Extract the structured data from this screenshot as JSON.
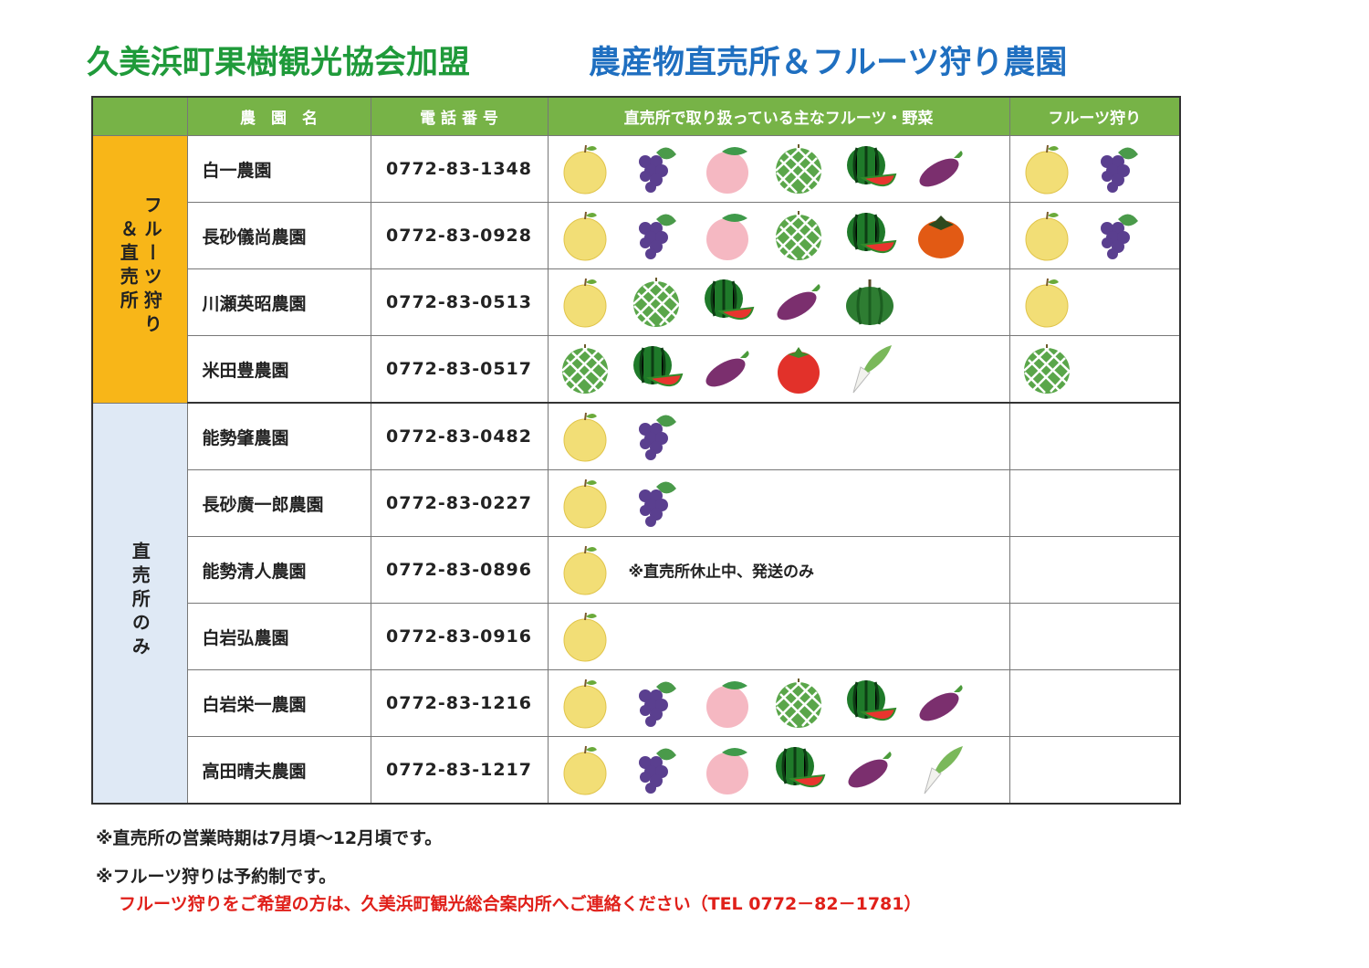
{
  "title": {
    "left": "久美浜町果樹観光協会加盟",
    "right": "農産物直売所＆フルーツ狩り農園"
  },
  "table": {
    "header": [
      "",
      "農　園　名",
      "電 話 番 号",
      "直売所で取り扱っている主なフルーツ・野菜",
      "フルーツ狩り"
    ],
    "groups": [
      {
        "label": "フルーツ狩り＆直売所",
        "rows": [
          {
            "name": "白一農園",
            "phone": "0772-83-1348"
          },
          {
            "name": "長砂儀尚農園",
            "phone": "0772-83-0928"
          },
          {
            "name": "川瀬英昭農園",
            "phone": "0772-83-0513"
          },
          {
            "name": "米田豊農園",
            "phone": "0772-83-0517"
          }
        ]
      },
      {
        "label": "直売所のみ",
        "rows": [
          {
            "name": "能勢肇農園",
            "phone": "0772-83-0482"
          },
          {
            "name": "長砂廣一郎農園",
            "phone": "0772-83-0227"
          },
          {
            "name": "能勢清人農園",
            "phone": "0772-83-0896",
            "note": "※直売所休止中、発送のみ"
          },
          {
            "name": "白岩弘農園",
            "phone": "0772-83-0916"
          },
          {
            "name": "白岩栄一農園",
            "phone": "0772-83-1216"
          },
          {
            "name": "高田晴夫農園",
            "phone": "0772-83-1217"
          }
        ]
      }
    ]
  },
  "notes": [
    "※直売所の営業時期は7月頃～12月頃です。",
    "※フルーツ狩りは予約制です。"
  ],
  "contact": "フルーツ狩りをご希望の方は、久美浜町観光総合案内所へご連絡ください（TEL 0772－82－1781）"
}
